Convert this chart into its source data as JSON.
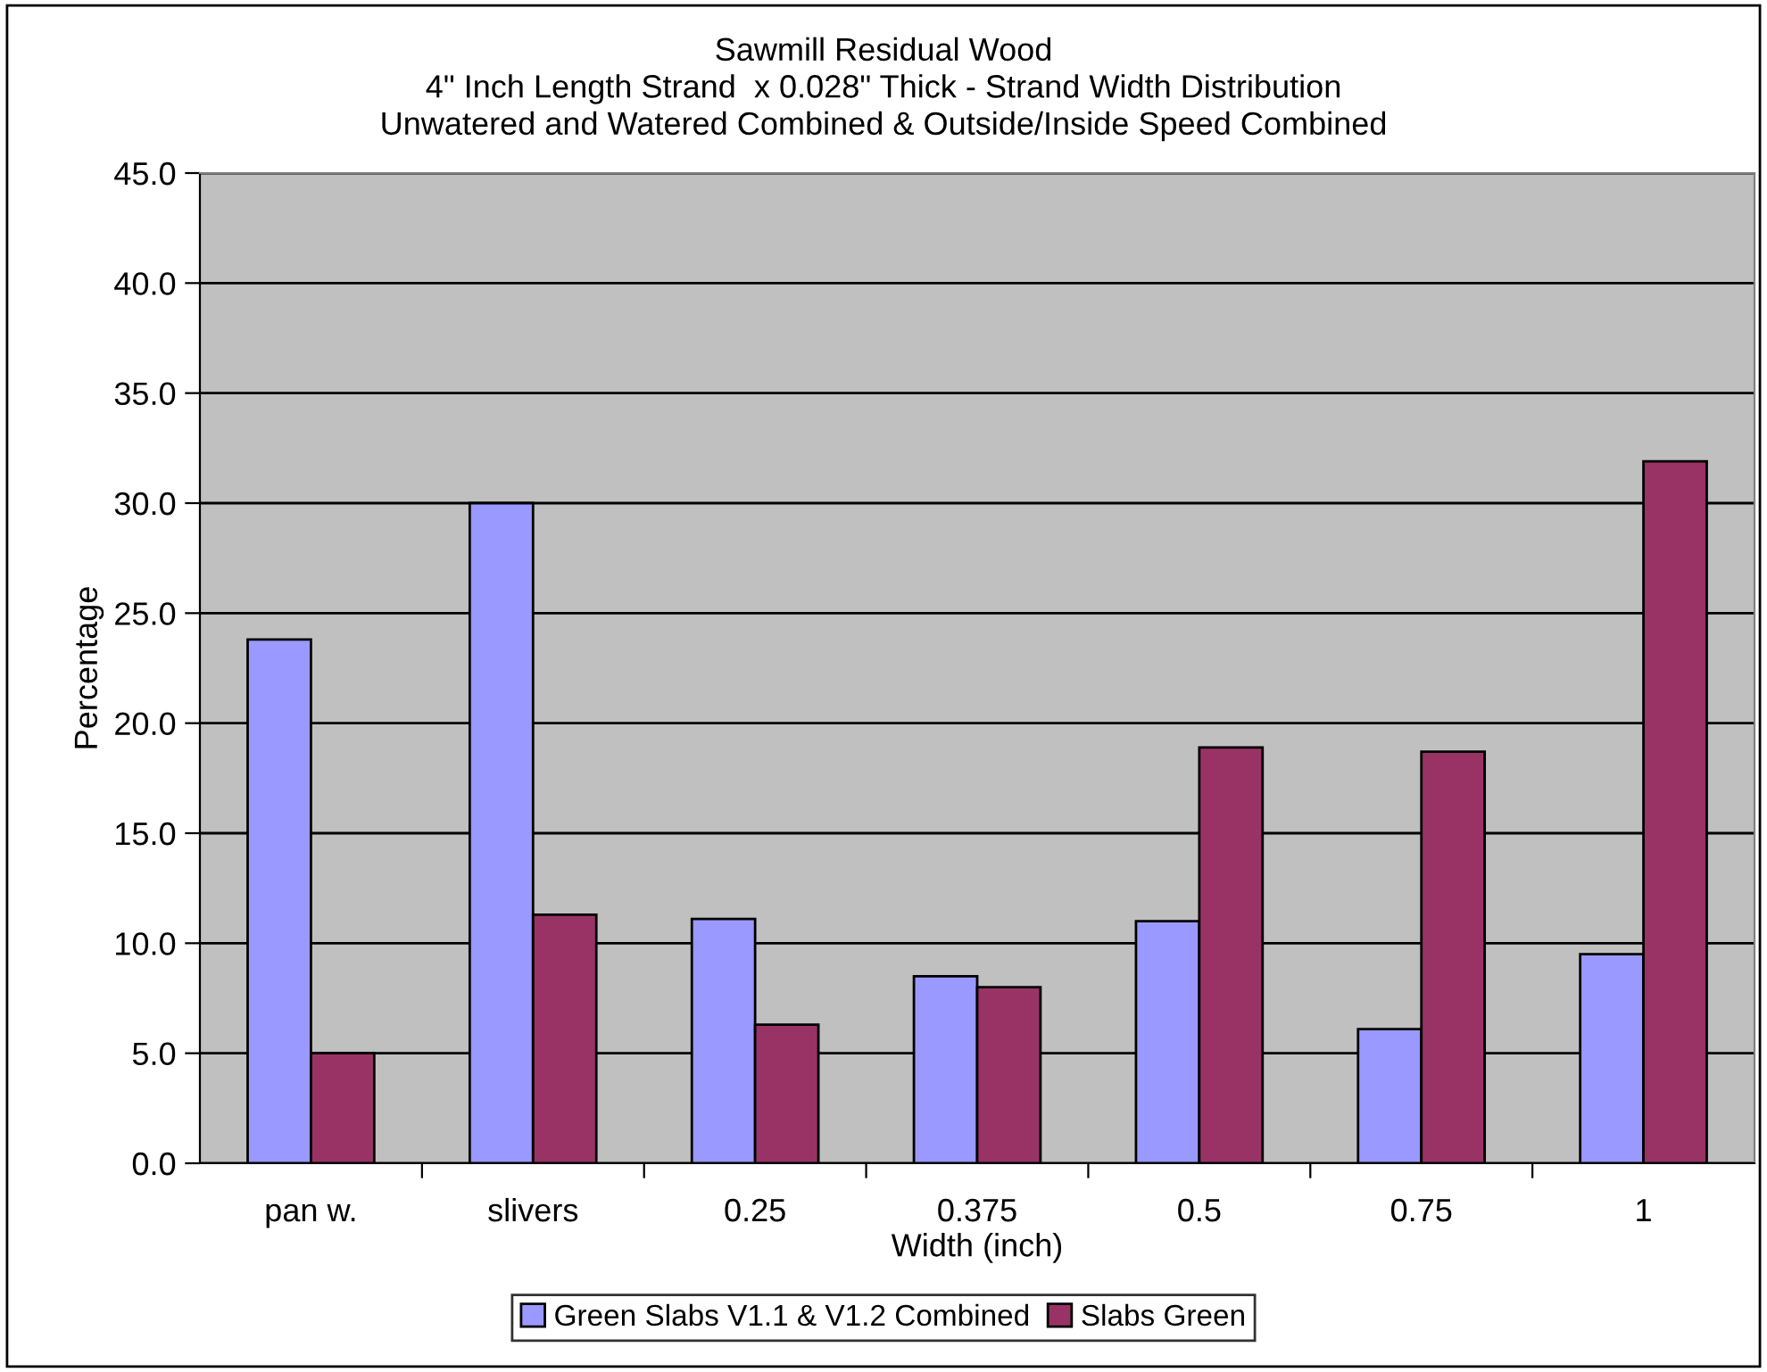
{
  "chart_data": {
    "type": "bar",
    "title": "Sawmill Residual Wood\n4\" Inch Length Strand  x 0.028\" Thick - Strand Width Distribution\nUnwatered and Watered Combined & Outside/Inside Speed Combined",
    "xlabel": "Width (inch)",
    "ylabel": "Percentage",
    "categories": [
      "pan w.",
      "slivers",
      "0.25",
      "0.375",
      "0.5",
      "0.75",
      "1"
    ],
    "series": [
      {
        "name": "Green Slabs V1.1 & V1.2 Combined",
        "color": "#9999ff",
        "values": [
          23.8,
          30.0,
          11.1,
          8.5,
          11.0,
          6.1,
          9.5
        ]
      },
      {
        "name": "Slabs Green",
        "color": "#993366",
        "values": [
          5.0,
          11.3,
          6.3,
          8.0,
          18.9,
          18.7,
          31.9
        ]
      }
    ],
    "ylim": [
      0,
      45
    ],
    "yticks": [
      {
        "value": 0,
        "label": "0.0"
      },
      {
        "value": 5,
        "label": "5.0"
      },
      {
        "value": 10,
        "label": "10.0"
      },
      {
        "value": 15,
        "label": "15.0"
      },
      {
        "value": 20,
        "label": "20.0"
      },
      {
        "value": 25,
        "label": "25.0"
      },
      {
        "value": 30,
        "label": "30.0"
      },
      {
        "value": 35,
        "label": "35.0"
      },
      {
        "value": 40,
        "label": "40.0"
      },
      {
        "value": 45,
        "label": "45.0"
      }
    ],
    "grid": "y",
    "legend": "bottom"
  }
}
